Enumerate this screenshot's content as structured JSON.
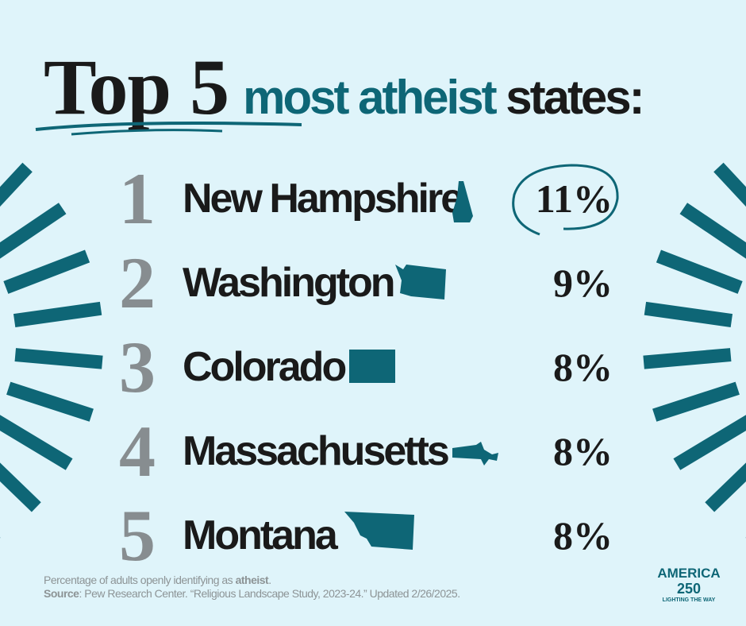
{
  "title": {
    "lead": "Top 5",
    "plain": "most",
    "highlight": "atheist",
    "end": "states:"
  },
  "items": [
    {
      "rank": "1",
      "state": "New Hampshire",
      "value": "11%"
    },
    {
      "rank": "2",
      "state": "Washington",
      "value": "9%"
    },
    {
      "rank": "3",
      "state": "Colorado",
      "value": "8%"
    },
    {
      "rank": "4",
      "state": "Massachusetts",
      "value": "8%"
    },
    {
      "rank": "5",
      "state": "Montana",
      "value": "8%"
    }
  ],
  "footnote": {
    "text": "Percentage of adults openly identifying as",
    "bold": "atheist",
    "end": ".",
    "source_label": "Source",
    "source_text": ": Pew Research Center. “Religious Landscape Study, 2023-24.” Updated 2/26/2025."
  },
  "logo": {
    "name": "AMERICA",
    "number": "250",
    "tagline": "LIGHTING THE WAY"
  }
}
